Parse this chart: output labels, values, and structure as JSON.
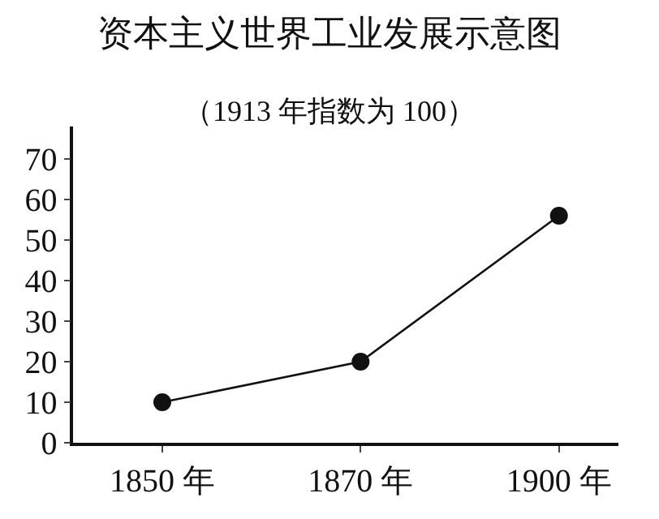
{
  "chart_data": {
    "type": "line",
    "title": "资本主义世界工业发展示意图",
    "subtitle": "（1913 年指数为 100）",
    "categories": [
      "1850 年",
      "1870 年",
      "1900 年"
    ],
    "series": [
      {
        "color": "#111111",
        "values": [
          10,
          20,
          56
        ]
      }
    ],
    "ylim": [
      0,
      78
    ],
    "yticks": [
      0,
      10,
      20,
      30,
      40,
      50,
      60,
      70
    ],
    "marker": "circle",
    "line_style": "solid"
  }
}
